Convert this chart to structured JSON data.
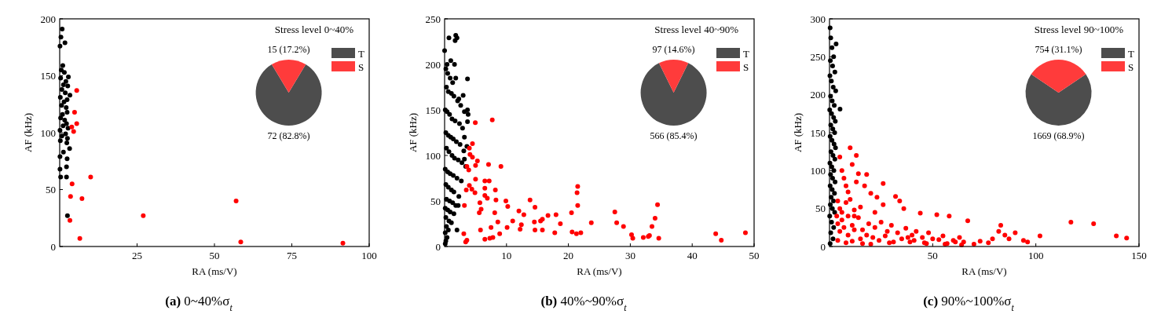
{
  "chart_data": [
    {
      "type": "scatter",
      "xlabel": "RA (ms/V)",
      "ylabel": "AF (kHz)",
      "annotations": [
        "(a) 0~40%σ$_{t}$"
      ],
      "xlim": [
        0,
        100
      ],
      "xticks": [
        25,
        50,
        75,
        100
      ],
      "ylim": [
        0,
        200
      ],
      "yticks": [
        0,
        50,
        100,
        150,
        200
      ],
      "marker": "circle",
      "grid": false,
      "series": [
        {
          "color": "#000000",
          "x": [
            0.8,
            0.4,
            1.7,
            0.1,
            1,
            0.5,
            1.5,
            2.8,
            0.3,
            2,
            1.2,
            2.6,
            0.7,
            1.8,
            3.3,
            0.2,
            2.4,
            1.4,
            0.6,
            2.1,
            2.4,
            0.9,
            0.3,
            1.6,
            2.2,
            1.1,
            2.7,
            0.1,
            1.9,
            0.7,
            2.5,
            0.2,
            2.3,
            3.2,
            1.2,
            0.1,
            2.4,
            2.2,
            0.1,
            2.2,
            0.3,
            2.5
          ],
          "values": [
            191,
            184,
            179,
            176,
            159,
            155,
            153,
            149,
            148,
            145,
            142,
            141,
            138,
            135,
            133,
            131,
            129,
            127,
            124,
            122,
            118,
            116,
            113,
            111,
            108,
            106,
            104,
            102,
            99,
            97,
            95,
            93,
            91,
            86,
            83,
            79,
            77,
            70,
            68,
            61,
            61,
            27
          ]
        },
        {
          "color": "#ff0000",
          "x": [
            5.5,
            4.8,
            5.5,
            3.9,
            4.5,
            10,
            4,
            3.5,
            7.2,
            3.3,
            6.5,
            27,
            57,
            58.5,
            91.5
          ],
          "values": [
            137,
            118,
            108,
            105,
            101,
            61,
            55,
            44,
            42,
            23,
            7,
            27,
            40,
            4,
            3
          ]
        }
      ]
    },
    {
      "type": "pie",
      "title": "Stress level 0~40%",
      "categories": [
        "T",
        "S"
      ],
      "values": [
        72,
        15
      ],
      "colors": [
        "#4d4d4d",
        "#ff3b3b"
      ],
      "value_labels": [
        "72 (82.8%)",
        "15 (17.2%)"
      ],
      "legend": "right"
    },
    {
      "type": "scatter",
      "xlabel": "RA (ms/V)",
      "ylabel": "AF (kHz)",
      "annotations": [
        "(b) 40%~90%σ$_{t}$"
      ],
      "xlim": [
        0,
        50
      ],
      "xticks": [
        10,
        20,
        30,
        40,
        50
      ],
      "ylim": [
        0,
        250
      ],
      "yticks": [
        0,
        50,
        100,
        150,
        200,
        250
      ],
      "marker": "circle",
      "grid": false,
      "series": [
        {
          "color": "#000000",
          "x": [
            0.7,
            1.8,
            1.7,
            2,
            0,
            1,
            1.6,
            0.4,
            1.8,
            3.7,
            2.3,
            3,
            3.7,
            3.8,
            3.2,
            3.7,
            2,
            2.2,
            3.2,
            3.6,
            3.2,
            0.2,
            0.5,
            0.9,
            1.3,
            0.3,
            0.6,
            1.1,
            1.5,
            2.1,
            2.6,
            0.1,
            0.4,
            0.8,
            1.2,
            1.7,
            2.4,
            2.9,
            0.2,
            0.6,
            1,
            1.4,
            1.9,
            2.5,
            3.1,
            0.3,
            0.7,
            1.2,
            1.6,
            2.2,
            2.8,
            3.4,
            0.1,
            0.5,
            0.9,
            1.4,
            2,
            2.7,
            0.2,
            0.6,
            1.1,
            1.5,
            2.3,
            0.3,
            0.8,
            1.3,
            1.8,
            0.1,
            0.5,
            0.9,
            1.5,
            0.2,
            0.7,
            1.1,
            0.3,
            0.6,
            0.1,
            0.4,
            0.2,
            0.1
          ],
          "values": [
            229,
            232,
            226,
            229,
            215,
            204,
            200,
            200,
            185,
            184,
            162,
            166,
            150,
            145,
            148,
            137,
            18,
            45,
            120,
            110,
            96,
            195,
            190,
            185,
            180,
            175,
            170,
            168,
            165,
            160,
            155,
            150,
            148,
            145,
            140,
            138,
            135,
            130,
            125,
            122,
            120,
            118,
            115,
            112,
            105,
            108,
            104,
            100,
            97,
            95,
            92,
            88,
            85,
            82,
            80,
            78,
            75,
            72,
            68,
            65,
            62,
            60,
            55,
            52,
            50,
            48,
            45,
            42,
            40,
            38,
            36,
            32,
            28,
            26,
            22,
            18,
            15,
            10,
            6,
            3
          ]
        },
        {
          "color": "#ff0000",
          "x": [
            4.96,
            7.7,
            4.5,
            4,
            4.1,
            4.5,
            5.3,
            5,
            3.6,
            3.9,
            7.1,
            9.1,
            5,
            6.5,
            7.2,
            4,
            4.4,
            3.5,
            6.5,
            8.2,
            4.9,
            6.5,
            6.9,
            8.3,
            9.9,
            5.7,
            13.8,
            3.2,
            10.2,
            14.6,
            5.9,
            5.6,
            8.1,
            12,
            12.8,
            16.7,
            18,
            20.5,
            21.5,
            21.4,
            21.5,
            27.5,
            34.4,
            34,
            33.5,
            28.9,
            18.7,
            23.7,
            27.8,
            15.8,
            14.5,
            11,
            12.4,
            8.6,
            7.5,
            10.1,
            15.5,
            12.2,
            14.6,
            15.8,
            5.8,
            17.8,
            20.6,
            21.3,
            22,
            8.9,
            3.1,
            6.5,
            7.3,
            7.8,
            3.4,
            3.6,
            30.2,
            30.4,
            32.1,
            32.9,
            33.1,
            34.6,
            43.8,
            44.7,
            48.6
          ],
          "values": [
            136,
            139,
            113,
            108,
            101,
            98,
            94,
            89,
            88,
            84,
            90,
            88,
            74,
            72,
            72,
            67,
            63,
            62,
            64,
            62,
            59,
            56,
            53,
            51,
            50,
            48,
            51,
            45,
            44,
            43,
            41,
            37,
            37,
            39,
            35,
            34,
            35,
            37,
            66,
            59,
            45,
            38,
            46,
            31,
            22,
            22,
            25,
            26,
            26,
            30,
            27,
            28,
            24,
            27,
            21,
            21,
            28,
            19,
            18,
            18,
            18,
            15,
            16,
            14,
            15,
            14,
            14,
            8,
            9,
            10,
            5,
            7,
            13,
            9,
            10,
            11,
            12,
            9,
            14,
            7,
            15
          ]
        }
      ]
    },
    {
      "type": "pie",
      "title": "Stress level 40~90%",
      "categories": [
        "T",
        "S"
      ],
      "values": [
        566,
        97
      ],
      "colors": [
        "#4d4d4d",
        "#ff3b3b"
      ],
      "value_labels": [
        "566 (85.4%)",
        "97 (14.6%)"
      ],
      "legend": "right"
    },
    {
      "type": "scatter",
      "xlabel": "RA (ms/V)",
      "ylabel": "AF (kHz)",
      "annotations": [
        "(c) 90%~100%σ$_{t}$"
      ],
      "xlim": [
        0,
        150
      ],
      "xticks": [
        50,
        100,
        150
      ],
      "ylim": [
        0,
        300
      ],
      "yticks": [
        0,
        50,
        100,
        150,
        200,
        250,
        300
      ],
      "marker": "circle",
      "grid": false,
      "series": [
        {
          "color": "#000000",
          "x": [
            0.3,
            3.2,
            5.1,
            0.6,
            1.2,
            2,
            0.4,
            1.5,
            2.6,
            0.2,
            0.9,
            1.8,
            3,
            0.5,
            1.3,
            2.3,
            0.1,
            1,
            2,
            2.8,
            0.6,
            1.6,
            2.5,
            0.3,
            1.2,
            2.2,
            2.9,
            0.7,
            1.7,
            2.6,
            0.2,
            1.1,
            2.1,
            0.5,
            1.5,
            2.7,
            0.3,
            1.3,
            2.4,
            0.8,
            1.9,
            0.4,
            1.4,
            2.5,
            0.1,
            1,
            2,
            0.6,
            1.7,
            0.3
          ],
          "values": [
            288,
            267,
            181,
            275,
            262,
            250,
            245,
            238,
            230,
            225,
            218,
            210,
            205,
            198,
            192,
            186,
            180,
            175,
            170,
            165,
            160,
            155,
            150,
            145,
            140,
            135,
            130,
            125,
            120,
            115,
            110,
            105,
            100,
            95,
            90,
            85,
            80,
            75,
            70,
            65,
            60,
            55,
            50,
            45,
            40,
            32,
            25,
            18,
            10,
            4
          ]
        },
        {
          "color": "#ff0000",
          "x": [
            117,
            128,
            139,
            144,
            102,
            90,
            83,
            82,
            85,
            87,
            94,
            96,
            79,
            73,
            70,
            77,
            67,
            58,
            52,
            44,
            32,
            26,
            34,
            36,
            10,
            13,
            11,
            14,
            18,
            13,
            17,
            20,
            23,
            26,
            5,
            6,
            7,
            8,
            9,
            4,
            5,
            6,
            8,
            10,
            12,
            15,
            4,
            6,
            9,
            11,
            14,
            16,
            19,
            22,
            25,
            28,
            30,
            33,
            37,
            40,
            42,
            45,
            48,
            50,
            55,
            60,
            63,
            65,
            5,
            7,
            9,
            12,
            15,
            18,
            21,
            24,
            27,
            31,
            35,
            38,
            41,
            46,
            53,
            57,
            61,
            4,
            8,
            11,
            16,
            20,
            29,
            39,
            47,
            56,
            64,
            3.5,
            12,
            22
          ],
          "values": [
            32,
            30,
            14,
            11,
            14,
            18,
            28,
            20,
            15,
            10,
            8,
            6,
            10,
            7,
            3,
            5,
            34,
            40,
            42,
            44,
            66,
            83,
            60,
            50,
            130,
            120,
            108,
            96,
            95,
            85,
            80,
            70,
            65,
            55,
            118,
            100,
            90,
            80,
            72,
            60,
            50,
            45,
            58,
            62,
            48,
            52,
            30,
            35,
            40,
            28,
            38,
            22,
            30,
            25,
            32,
            20,
            28,
            18,
            24,
            15,
            20,
            12,
            18,
            10,
            14,
            8,
            12,
            6,
            20,
            25,
            15,
            22,
            10,
            15,
            12,
            8,
            14,
            6,
            10,
            12,
            8,
            5,
            9,
            4,
            6,
            8,
            5,
            7,
            4,
            3,
            5,
            6,
            4,
            3,
            2,
            40,
            40,
            45
          ]
        }
      ]
    },
    {
      "type": "pie",
      "title": "Stress level 90~100%",
      "categories": [
        "T",
        "S"
      ],
      "values": [
        1669,
        754
      ],
      "colors": [
        "#4d4d4d",
        "#ff3b3b"
      ],
      "value_labels": [
        "1669 (68.9%)",
        "754 (31.1%)"
      ],
      "legend": "right"
    }
  ]
}
